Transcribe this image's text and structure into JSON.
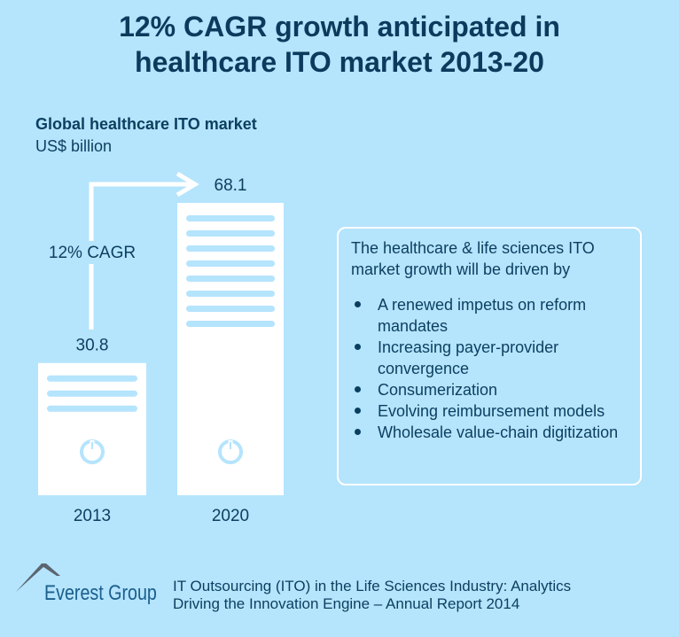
{
  "title_lines": [
    "12% CAGR growth anticipated in",
    "healthcare ITO market 2013-20"
  ],
  "chart_data": {
    "type": "bar",
    "title": "Global healthcare ITO market",
    "ylabel": "US$ billion",
    "categories": [
      "2013",
      "2020"
    ],
    "values": [
      30.8,
      68.1
    ],
    "value_labels": [
      "30.8",
      "68.1"
    ],
    "annotation": "12% CAGR",
    "grid": false,
    "colors": {
      "bar": "#ffffff",
      "stripe": "#b5e4fd",
      "background": "#b5e4fd",
      "text": "#0b3f5f"
    }
  },
  "drivers": {
    "heading": "The healthcare & life sciences ITO market growth will be driven by",
    "items": [
      "A renewed impetus on reform mandates",
      "Increasing payer-provider convergence",
      "Consumerization",
      "Evolving reimbursement models",
      "Wholesale value-chain digitization"
    ]
  },
  "footer": {
    "logo": "Everest Group",
    "source_lines": [
      "IT Outsourcing (ITO) in the Life Sciences Industry: Analytics",
      "Driving the Innovation Engine – Annual Report 2014"
    ]
  }
}
